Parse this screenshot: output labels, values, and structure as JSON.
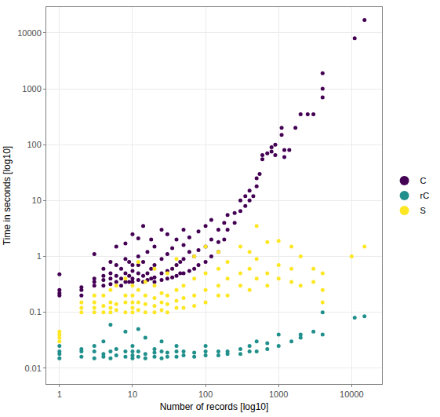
{
  "chart_data": {
    "type": "scatter",
    "x_label": "Number of records [log10]",
    "y_label": "Time in seconds [log10]",
    "log": true,
    "grid": true,
    "legend": "right",
    "marker": "circle",
    "xlim": [
      0.66,
      26000
    ],
    "xticks": [
      1,
      10,
      100,
      1000,
      10000
    ],
    "ylim": [
      0.0052,
      29000
    ],
    "yticks": [
      0.01,
      0.1,
      1,
      10,
      100,
      1000,
      10000
    ],
    "series": [
      {
        "name": "C",
        "color": "#440154",
        "x": [
          1,
          1,
          1,
          1,
          2,
          2,
          2,
          3,
          3,
          3,
          3,
          4,
          4,
          4,
          4,
          5,
          5,
          5,
          5,
          6,
          6,
          6,
          6,
          7,
          7,
          7,
          8,
          8,
          8,
          8,
          9,
          9,
          9,
          10,
          10,
          10,
          10,
          10,
          12,
          12,
          12,
          12,
          12,
          14,
          14,
          14,
          14,
          16,
          16,
          16,
          18,
          18,
          18,
          20,
          20,
          20,
          20,
          25,
          25,
          25,
          25,
          30,
          30,
          30,
          30,
          35,
          35,
          35,
          40,
          40,
          40,
          45,
          45,
          50,
          50,
          50,
          50,
          60,
          60,
          60,
          70,
          70,
          80,
          80,
          80,
          100,
          100,
          100,
          120,
          120,
          120,
          150,
          150,
          150,
          180,
          180,
          200,
          200,
          250,
          250,
          300,
          300,
          350,
          350,
          400,
          400,
          450,
          500,
          500,
          550,
          600,
          600,
          700,
          800,
          800,
          900,
          900,
          1100,
          1100,
          1200,
          1200,
          1400,
          1700,
          2000,
          2500,
          3000,
          4000,
          4000,
          4000,
          11000,
          15000
        ],
        "values": [
          0.2,
          0.22,
          0.25,
          0.48,
          0.2,
          0.25,
          0.28,
          0.3,
          0.35,
          0.4,
          1.1,
          0.3,
          0.38,
          0.45,
          0.6,
          0.32,
          0.4,
          0.5,
          0.8,
          0.35,
          0.45,
          0.7,
          1.5,
          0.3,
          0.4,
          0.6,
          0.35,
          0.5,
          0.9,
          1.7,
          0.35,
          0.45,
          0.8,
          0.35,
          0.4,
          0.55,
          0.7,
          2.5,
          0.38,
          0.5,
          0.7,
          1.0,
          2.1,
          0.35,
          0.45,
          0.8,
          3.5,
          0.38,
          0.5,
          1.2,
          0.4,
          0.6,
          2.0,
          0.35,
          0.42,
          0.7,
          1.5,
          0.38,
          0.5,
          0.9,
          3.0,
          0.4,
          0.55,
          1.1,
          2.5,
          0.42,
          0.6,
          1.4,
          0.45,
          0.7,
          2.0,
          0.5,
          0.8,
          0.5,
          0.9,
          1.6,
          3.0,
          0.55,
          1.2,
          2.2,
          0.6,
          1.0,
          0.7,
          1.3,
          2.8,
          0.8,
          1.5,
          3.5,
          1.0,
          2.0,
          4.5,
          1.2,
          1.8,
          3.0,
          2.0,
          4.0,
          3.0,
          5.5,
          4.0,
          6.0,
          6.5,
          10,
          8,
          12,
          10,
          15,
          12,
          18,
          25,
          30,
          55,
          65,
          70,
          75,
          90,
          100,
          65,
          200,
          150,
          80,
          60,
          80,
          200,
          350,
          350,
          350,
          1900,
          1000,
          700,
          8000,
          17000
        ]
      },
      {
        "name": "rC",
        "color": "#21908C",
        "x": [
          1,
          1,
          1,
          1,
          2,
          2,
          2,
          3,
          3,
          3,
          4,
          4,
          4,
          5,
          5,
          5,
          6,
          6,
          8,
          8,
          8,
          10,
          10,
          10,
          10,
          12,
          12,
          12,
          15,
          15,
          15,
          20,
          20,
          20,
          25,
          25,
          25,
          30,
          30,
          40,
          40,
          40,
          50,
          50,
          70,
          70,
          100,
          100,
          100,
          150,
          150,
          200,
          200,
          300,
          300,
          400,
          400,
          500,
          500,
          700,
          700,
          1000,
          1000,
          1500,
          2000,
          2000,
          3000,
          4000,
          4000,
          11000,
          15000
        ],
        "values": [
          0.015,
          0.018,
          0.02,
          0.025,
          0.016,
          0.02,
          0.022,
          0.015,
          0.02,
          0.025,
          0.016,
          0.018,
          0.03,
          0.015,
          0.02,
          0.06,
          0.017,
          0.022,
          0.016,
          0.02,
          0.045,
          0.015,
          0.017,
          0.02,
          0.025,
          0.016,
          0.02,
          0.05,
          0.015,
          0.018,
          0.035,
          0.016,
          0.019,
          0.022,
          0.015,
          0.02,
          0.03,
          0.016,
          0.019,
          0.016,
          0.02,
          0.025,
          0.017,
          0.02,
          0.016,
          0.019,
          0.017,
          0.02,
          0.025,
          0.017,
          0.02,
          0.018,
          0.02,
          0.018,
          0.022,
          0.02,
          0.025,
          0.02,
          0.03,
          0.022,
          0.028,
          0.025,
          0.04,
          0.03,
          0.035,
          0.04,
          0.045,
          0.1,
          0.04,
          0.08,
          0.085
        ]
      },
      {
        "name": "S",
        "color": "#FDE725",
        "x": [
          1,
          1,
          1,
          1,
          2,
          2,
          2,
          3,
          3,
          3,
          3,
          4,
          4,
          4,
          5,
          5,
          5,
          5,
          6,
          6,
          6,
          8,
          8,
          8,
          8,
          10,
          10,
          10,
          10,
          10,
          12,
          12,
          12,
          12,
          15,
          15,
          15,
          15,
          20,
          20,
          20,
          20,
          20,
          25,
          25,
          25,
          30,
          30,
          30,
          30,
          40,
          40,
          40,
          40,
          50,
          50,
          50,
          70,
          70,
          70,
          70,
          100,
          100,
          100,
          100,
          150,
          150,
          150,
          150,
          200,
          200,
          200,
          300,
          300,
          300,
          400,
          400,
          400,
          500,
          500,
          500,
          700,
          700,
          700,
          1000,
          1000,
          1000,
          1500,
          1500,
          1500,
          2000,
          2000,
          3000,
          3000,
          4000,
          4000,
          4000,
          10000,
          15000
        ],
        "values": [
          0.03,
          0.035,
          0.04,
          0.045,
          0.1,
          0.12,
          0.15,
          0.1,
          0.12,
          0.15,
          0.2,
          0.1,
          0.13,
          0.2,
          0.1,
          0.12,
          0.15,
          0.25,
          0.11,
          0.14,
          0.3,
          0.1,
          0.15,
          0.2,
          0.4,
          0.1,
          0.12,
          0.15,
          0.2,
          0.3,
          0.11,
          0.15,
          0.25,
          0.8,
          0.1,
          0.14,
          0.2,
          0.35,
          0.1,
          0.13,
          0.18,
          0.3,
          0.6,
          0.11,
          0.15,
          0.22,
          0.1,
          0.14,
          0.2,
          0.5,
          0.12,
          0.16,
          0.25,
          0.9,
          0.12,
          0.18,
          0.3,
          0.13,
          0.2,
          0.4,
          1.0,
          0.15,
          0.25,
          0.5,
          1.5,
          0.2,
          0.3,
          0.6,
          1.2,
          0.2,
          0.4,
          0.8,
          0.3,
          0.5,
          1.5,
          0.25,
          0.6,
          1.2,
          0.4,
          0.9,
          3.5,
          0.3,
          0.5,
          1.8,
          0.4,
          0.7,
          1.9,
          0.35,
          0.6,
          1.5,
          0.3,
          1.0,
          0.35,
          0.6,
          0.15,
          0.25,
          0.5,
          1.0,
          1.5
        ]
      }
    ]
  }
}
